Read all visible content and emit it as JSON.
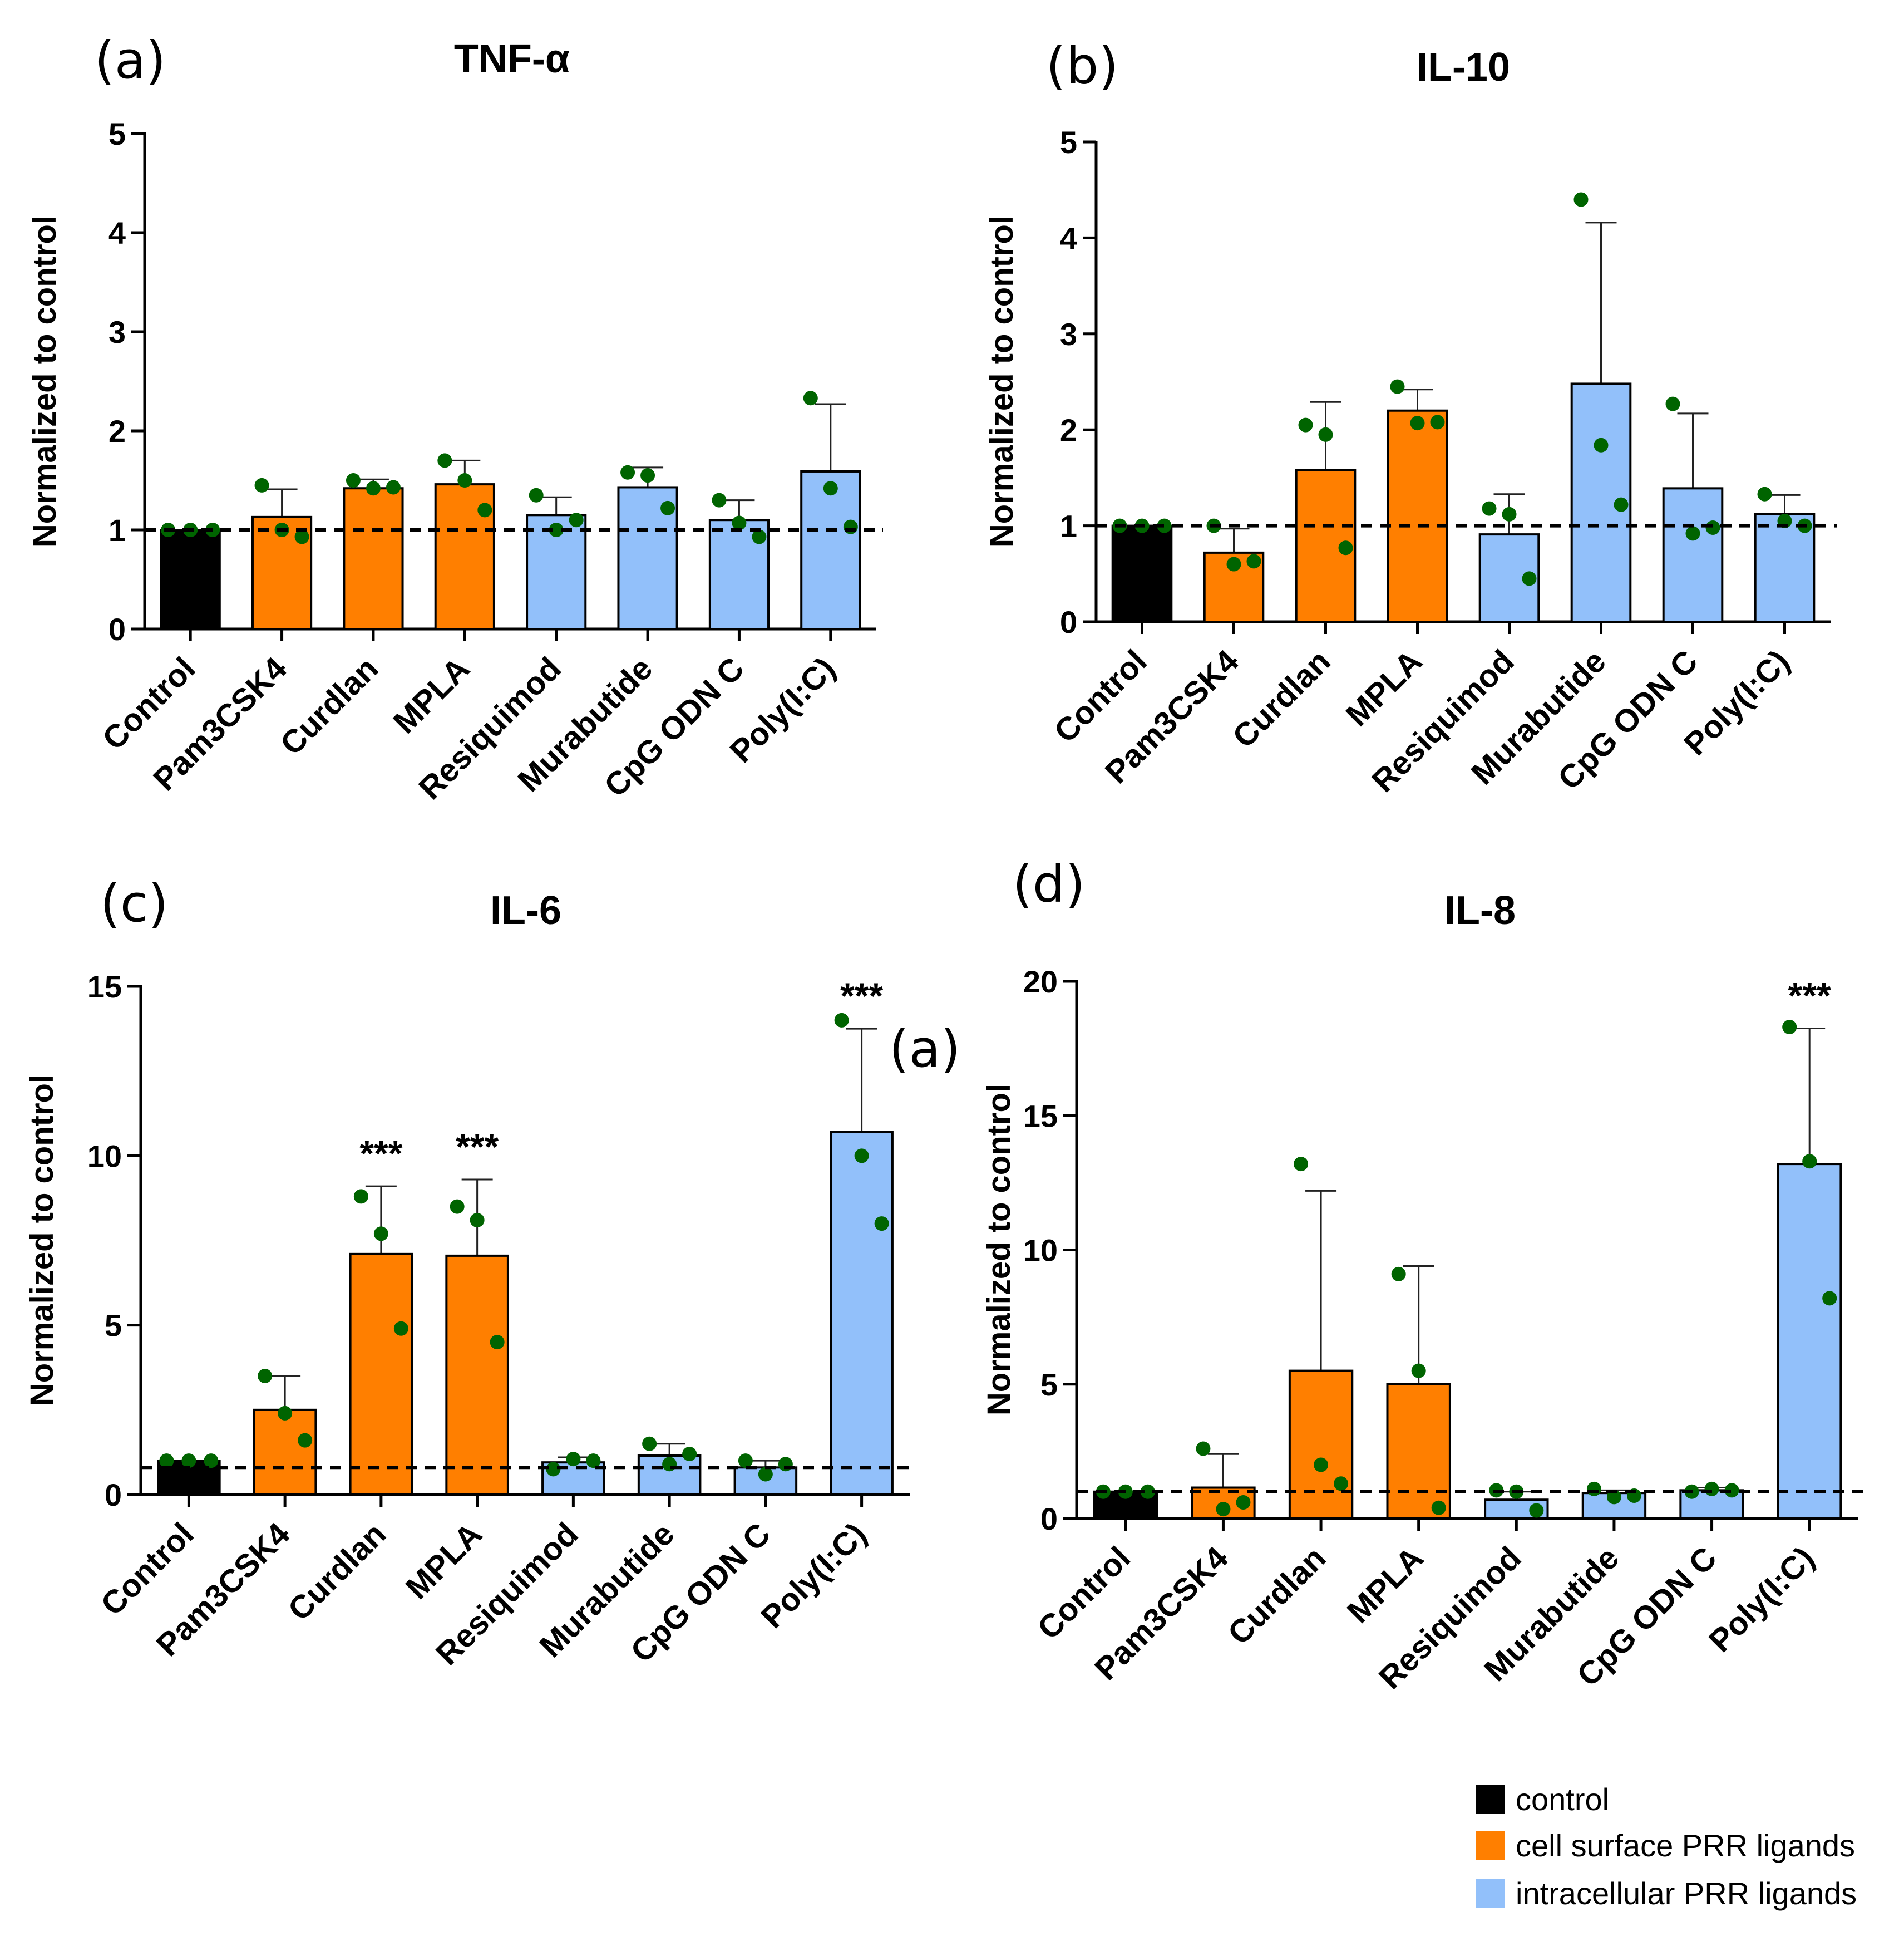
{
  "colors": {
    "control": "#000000",
    "cell_surface": "#ff7f00",
    "intracellular": "#92c0fa",
    "dot": "#006400"
  },
  "legend": [
    {
      "label": "control",
      "group": "control"
    },
    {
      "label": "cell surface PRR ligands",
      "group": "cell_surface"
    },
    {
      "label": "intracellular PRR ligands",
      "group": "intracellular"
    }
  ],
  "stray_label": "(a)",
  "chart_data": [
    {
      "panel": "(a)",
      "type": "bar",
      "title": "TNF-α",
      "ylabel": "Normalized to control",
      "ylim": [
        0,
        5
      ],
      "yticks": [
        0,
        1,
        2,
        3,
        4,
        5
      ],
      "reference_line": 1,
      "categories": [
        "Control",
        "Pam3CSK4",
        "Curdlan",
        "MPLA",
        "Resiquimod",
        "Murabutide",
        "CpG ODN C",
        "Poly(I:C)"
      ],
      "groups": [
        "control",
        "cell_surface",
        "cell_surface",
        "cell_surface",
        "intracellular",
        "intracellular",
        "intracellular",
        "intracellular"
      ],
      "values": [
        1.0,
        1.13,
        1.42,
        1.46,
        1.15,
        1.43,
        1.1,
        1.59
      ],
      "errors": [
        0.0,
        0.28,
        0.09,
        0.24,
        0.18,
        0.2,
        0.2,
        0.68
      ],
      "points": [
        [
          1.0,
          1.0,
          1.0
        ],
        [
          1.45,
          1.0,
          0.93
        ],
        [
          1.5,
          1.42,
          1.43
        ],
        [
          1.7,
          1.5,
          1.2
        ],
        [
          1.35,
          1.0,
          1.1
        ],
        [
          1.58,
          1.55,
          1.22
        ],
        [
          1.3,
          1.07,
          0.93
        ],
        [
          2.33,
          1.42,
          1.03
        ]
      ],
      "significance": [
        "",
        "",
        "",
        "",
        "",
        "",
        "",
        ""
      ]
    },
    {
      "panel": "(b)",
      "type": "bar",
      "title": "IL-10",
      "ylabel": "Normalized to control",
      "ylim": [
        0,
        5
      ],
      "yticks": [
        0,
        1,
        2,
        3,
        4,
        5
      ],
      "reference_line": 1,
      "categories": [
        "Control",
        "Pam3CSK4",
        "Curdlan",
        "MPLA",
        "Resiquimod",
        "Murabutide",
        "CpG ODN C",
        "Poly(I:C)"
      ],
      "groups": [
        "control",
        "cell_surface",
        "cell_surface",
        "cell_surface",
        "intracellular",
        "intracellular",
        "intracellular",
        "intracellular"
      ],
      "values": [
        1.0,
        0.72,
        1.58,
        2.2,
        0.91,
        2.48,
        1.39,
        1.12
      ],
      "errors": [
        0.0,
        0.25,
        0.71,
        0.22,
        0.42,
        1.68,
        0.78,
        0.2
      ],
      "points": [
        [
          1.0,
          1.0,
          1.0
        ],
        [
          1.0,
          0.6,
          0.63
        ],
        [
          2.05,
          1.95,
          0.77
        ],
        [
          2.45,
          2.07,
          2.08
        ],
        [
          1.18,
          1.12,
          0.45
        ],
        [
          4.4,
          1.84,
          1.22
        ],
        [
          2.27,
          0.92,
          0.98
        ],
        [
          1.33,
          1.05,
          1.0
        ]
      ],
      "significance": [
        "",
        "",
        "",
        "",
        "",
        "",
        "",
        ""
      ]
    },
    {
      "panel": "(c)",
      "type": "bar",
      "title": "IL-6",
      "ylabel": "Normalized to control",
      "ylim": [
        0,
        15
      ],
      "yticks": [
        0,
        5,
        10,
        15
      ],
      "reference_line": 0.8,
      "categories": [
        "Control",
        "Pam3CSK4",
        "Curdlan",
        "MPLA",
        "Resiquimod",
        "Murabutide",
        "CpG ODN C",
        "Poly(I:C)"
      ],
      "groups": [
        "control",
        "cell_surface",
        "cell_surface",
        "cell_surface",
        "intracellular",
        "intracellular",
        "intracellular",
        "intracellular"
      ],
      "values": [
        1.0,
        2.5,
        7.1,
        7.05,
        0.95,
        1.15,
        0.8,
        10.7
      ],
      "errors": [
        0.0,
        1.0,
        2.0,
        2.25,
        0.15,
        0.35,
        0.2,
        3.05
      ],
      "points": [
        [
          1.0,
          1.0,
          1.0
        ],
        [
          3.5,
          2.4,
          1.6
        ],
        [
          8.8,
          7.7,
          4.9
        ],
        [
          8.5,
          8.1,
          4.5
        ],
        [
          0.75,
          1.05,
          1.0
        ],
        [
          1.5,
          0.9,
          1.2
        ],
        [
          1.0,
          0.6,
          0.9
        ],
        [
          14.0,
          10.0,
          8.0
        ]
      ],
      "significance": [
        "",
        "",
        "***",
        "***",
        "",
        "",
        "",
        "***"
      ]
    },
    {
      "panel": "(d)",
      "type": "bar",
      "title": "IL-8",
      "ylabel": "Normalized to control",
      "ylim": [
        0,
        20
      ],
      "yticks": [
        0,
        5,
        10,
        15,
        20
      ],
      "reference_line": 1,
      "categories": [
        "Control",
        "Pam3CSK4",
        "Curdlan",
        "MPLA",
        "Resiquimod",
        "Murabutide",
        "CpG ODN C",
        "Poly(I:C)"
      ],
      "groups": [
        "control",
        "cell_surface",
        "cell_surface",
        "cell_surface",
        "intracellular",
        "intracellular",
        "intracellular",
        "intracellular"
      ],
      "values": [
        1.0,
        1.15,
        5.5,
        5.0,
        0.7,
        0.95,
        1.05,
        13.2
      ],
      "errors": [
        0.0,
        1.25,
        6.7,
        4.4,
        0.3,
        0.1,
        0.1,
        5.05
      ],
      "points": [
        [
          1.0,
          1.0,
          1.0
        ],
        [
          2.6,
          0.35,
          0.6
        ],
        [
          13.2,
          2.0,
          1.3
        ],
        [
          9.1,
          5.5,
          0.4
        ],
        [
          1.05,
          1.0,
          0.3
        ],
        [
          1.1,
          0.8,
          0.85
        ],
        [
          1.0,
          1.1,
          1.05
        ],
        [
          18.3,
          13.3,
          8.2
        ]
      ],
      "significance": [
        "",
        "",
        "",
        "",
        "",
        "",
        "",
        "***"
      ]
    }
  ]
}
